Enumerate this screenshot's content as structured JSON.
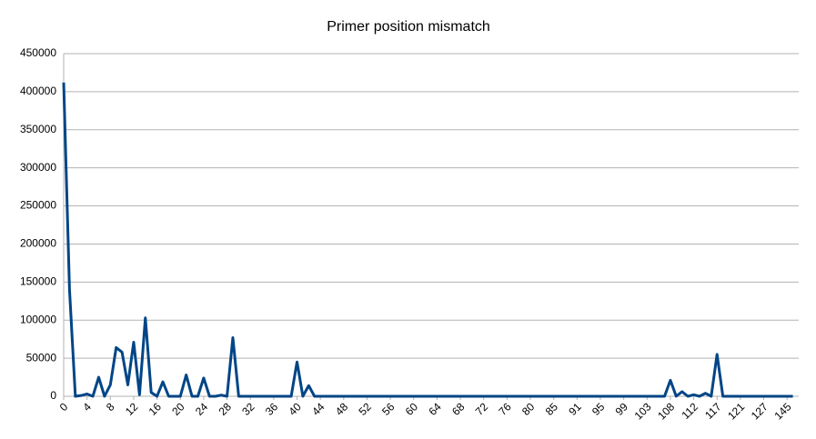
{
  "chart_data": {
    "type": "line",
    "title": "Primer position mismatch",
    "categories": [
      "0",
      null,
      null,
      null,
      "4",
      null,
      null,
      null,
      "8",
      null,
      null,
      null,
      "12",
      null,
      null,
      null,
      "16",
      null,
      null,
      null,
      "20",
      null,
      null,
      null,
      "24",
      null,
      null,
      null,
      "28",
      null,
      null,
      null,
      "32",
      null,
      null,
      null,
      "36",
      null,
      null,
      null,
      "40",
      null,
      null,
      null,
      "44",
      null,
      null,
      null,
      "48",
      null,
      null,
      null,
      "52",
      null,
      null,
      null,
      "56",
      null,
      null,
      null,
      "60",
      null,
      null,
      null,
      "64",
      null,
      null,
      null,
      "68",
      null,
      null,
      null,
      "72",
      null,
      null,
      null,
      "76",
      null,
      null,
      null,
      "80",
      null,
      null,
      null,
      "85",
      null,
      null,
      null,
      "91",
      null,
      null,
      null,
      "95",
      null,
      null,
      null,
      "99",
      null,
      null,
      null,
      "103",
      null,
      null,
      null,
      "108",
      null,
      null,
      null,
      "112",
      null,
      null,
      null,
      "117",
      null,
      null,
      null,
      "121",
      null,
      null,
      null,
      "127",
      null,
      null,
      null,
      "145",
      null
    ],
    "values": [
      412000,
      140000,
      0,
      1000,
      3000,
      0,
      25000,
      0,
      15000,
      64000,
      58000,
      15000,
      71000,
      2000,
      103000,
      5000,
      0,
      19000,
      0,
      0,
      0,
      28000,
      0,
      0,
      24000,
      0,
      0,
      1500,
      0,
      77000,
      0,
      0,
      0,
      0,
      0,
      0,
      0,
      0,
      0,
      0,
      45000,
      0,
      14000,
      0,
      0,
      0,
      0,
      0,
      0,
      0,
      0,
      0,
      0,
      0,
      0,
      0,
      0,
      0,
      0,
      0,
      0,
      0,
      0,
      0,
      0,
      0,
      0,
      0,
      0,
      0,
      0,
      0,
      0,
      0,
      0,
      0,
      0,
      0,
      0,
      0,
      0,
      0,
      0,
      0,
      0,
      0,
      0,
      0,
      0,
      0,
      0,
      0,
      0,
      0,
      0,
      0,
      0,
      0,
      0,
      0,
      0,
      0,
      0,
      0,
      21000,
      0,
      6000,
      0,
      2000,
      0,
      4000,
      0,
      55000,
      0,
      0,
      0,
      0,
      0,
      0,
      0,
      0,
      0,
      0,
      0,
      0,
      0
    ],
    "color": "#004586",
    "ylim": [
      0,
      450000
    ],
    "yticks": [
      0,
      50000,
      100000,
      150000,
      200000,
      250000,
      300000,
      350000,
      400000,
      450000
    ],
    "grid": true
  }
}
